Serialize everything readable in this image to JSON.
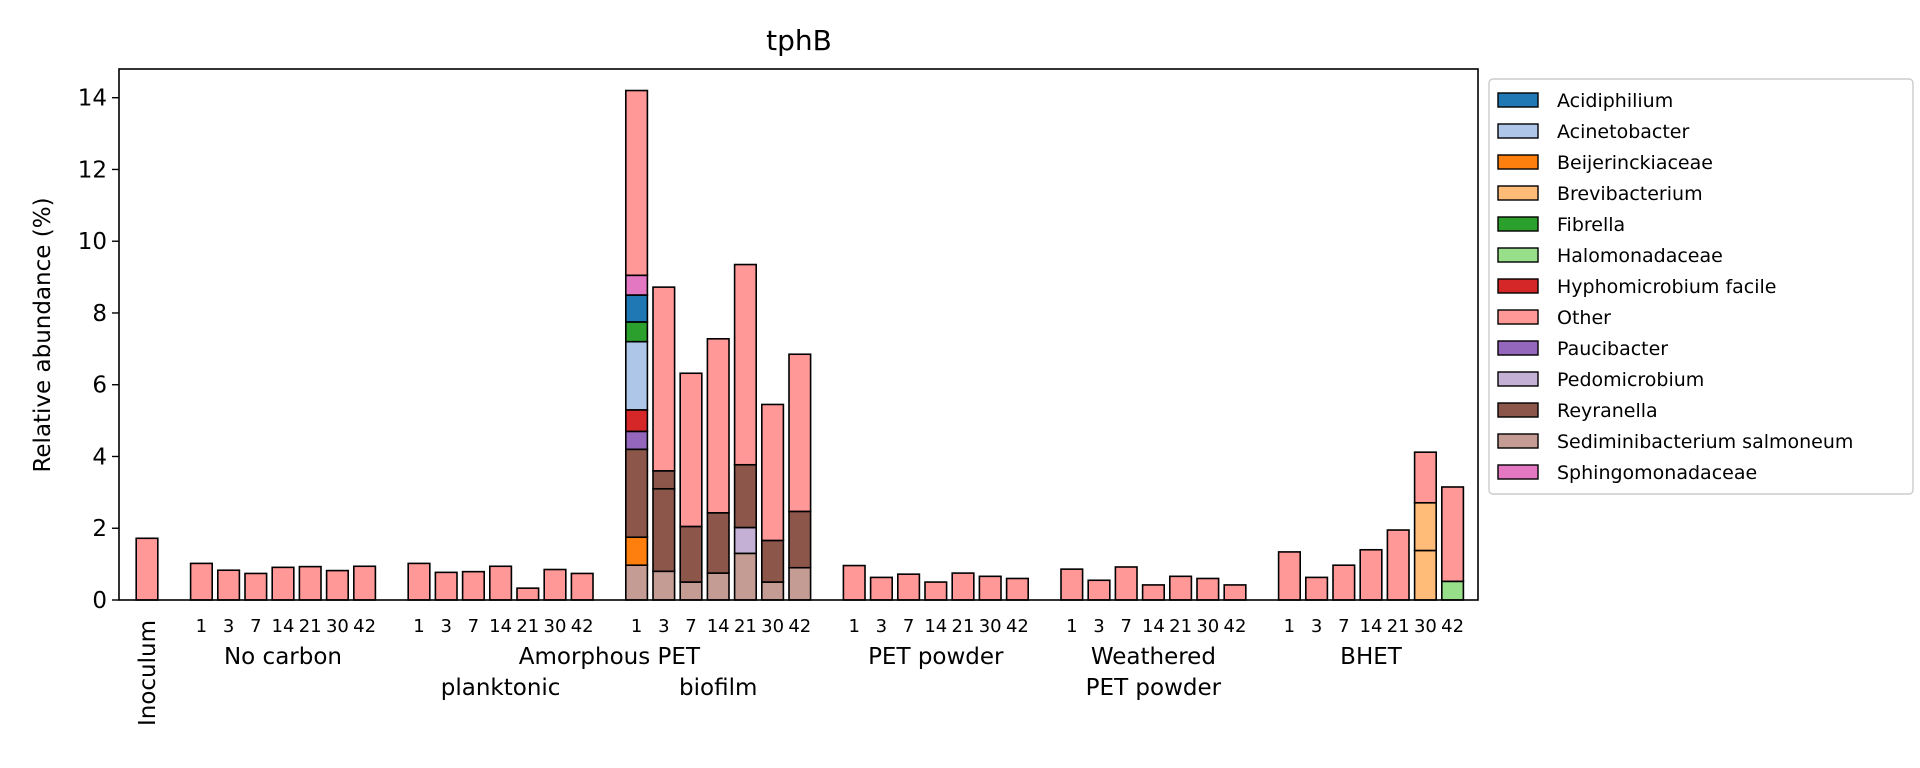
{
  "chart_data": {
    "type": "bar",
    "title": "tphB",
    "xlabel": "",
    "ylabel": "Relative abundance (%)",
    "ylim": [
      0,
      14.8
    ],
    "yticks": [
      0,
      2,
      4,
      6,
      8,
      10,
      12,
      14
    ],
    "grid": false,
    "legend_position": "outside-right",
    "inoculum_label": "Inoculum",
    "groups": [
      {
        "label_lines": [
          "No carbon"
        ],
        "days": [
          "1",
          "3",
          "7",
          "14",
          "21",
          "30",
          "42"
        ]
      },
      {
        "label_lines": [
          "planktonic"
        ],
        "days": [
          "1",
          "3",
          "7",
          "14",
          "21",
          "30",
          "42"
        ]
      },
      {
        "label_lines": [
          "biofilm"
        ],
        "days": [
          "1",
          "3",
          "7",
          "14",
          "21",
          "30",
          "42"
        ]
      },
      {
        "label_lines": [
          "PET powder"
        ],
        "days": [
          "1",
          "3",
          "7",
          "14",
          "21",
          "30",
          "42"
        ]
      },
      {
        "label_lines": [
          "Weathered",
          "PET powder"
        ],
        "days": [
          "1",
          "3",
          "7",
          "14",
          "21",
          "30",
          "42"
        ]
      },
      {
        "label_lines": [
          "BHET"
        ],
        "days": [
          "1",
          "3",
          "7",
          "14",
          "21",
          "30",
          "42"
        ]
      }
    ],
    "supergroup_label": "Amorphous PET",
    "series": [
      {
        "name": "Acidiphilium",
        "color": "#1f77b4"
      },
      {
        "name": "Acinetobacter",
        "color": "#aec7e8"
      },
      {
        "name": "Beijerinckiaceae",
        "color": "#ff7f0e"
      },
      {
        "name": "Brevibacterium",
        "color": "#ffbb78"
      },
      {
        "name": "Fibrella",
        "color": "#2ca02c"
      },
      {
        "name": "Halomonadaceae",
        "color": "#98df8a"
      },
      {
        "name": "Hyphomicrobium facile",
        "color": "#d62728"
      },
      {
        "name": "Other",
        "color": "#ff9896"
      },
      {
        "name": "Paucibacter",
        "color": "#9467bd"
      },
      {
        "name": "Pedomicrobium",
        "color": "#c5b0d5"
      },
      {
        "name": "Reyranella",
        "color": "#8c564b"
      },
      {
        "name": "Sediminibacterium salmoneum",
        "color": "#c49c94"
      },
      {
        "name": "Sphingomonadaceae",
        "color": "#e377c2"
      }
    ],
    "bars": [
      {
        "group": "Inoculum",
        "day": "",
        "segments": [
          {
            "s": "Other",
            "v": 1.72
          }
        ]
      },
      {
        "group": "No carbon",
        "day": "1",
        "segments": [
          {
            "s": "Other",
            "v": 1.02
          }
        ]
      },
      {
        "group": "No carbon",
        "day": "3",
        "segments": [
          {
            "s": "Other",
            "v": 0.83
          }
        ]
      },
      {
        "group": "No carbon",
        "day": "7",
        "segments": [
          {
            "s": "Other",
            "v": 0.74
          }
        ]
      },
      {
        "group": "No carbon",
        "day": "14",
        "segments": [
          {
            "s": "Other",
            "v": 0.91
          }
        ]
      },
      {
        "group": "No carbon",
        "day": "21",
        "segments": [
          {
            "s": "Other",
            "v": 0.93
          }
        ]
      },
      {
        "group": "No carbon",
        "day": "30",
        "segments": [
          {
            "s": "Other",
            "v": 0.82
          }
        ]
      },
      {
        "group": "No carbon",
        "day": "42",
        "segments": [
          {
            "s": "Other",
            "v": 0.94
          }
        ]
      },
      {
        "group": "planktonic",
        "day": "1",
        "segments": [
          {
            "s": "Other",
            "v": 1.02
          }
        ]
      },
      {
        "group": "planktonic",
        "day": "3",
        "segments": [
          {
            "s": "Other",
            "v": 0.77
          }
        ]
      },
      {
        "group": "planktonic",
        "day": "7",
        "segments": [
          {
            "s": "Other",
            "v": 0.79
          }
        ]
      },
      {
        "group": "planktonic",
        "day": "14",
        "segments": [
          {
            "s": "Other",
            "v": 0.94
          }
        ]
      },
      {
        "group": "planktonic",
        "day": "21",
        "segments": [
          {
            "s": "Other",
            "v": 0.33
          }
        ]
      },
      {
        "group": "planktonic",
        "day": "30",
        "segments": [
          {
            "s": "Other",
            "v": 0.85
          }
        ]
      },
      {
        "group": "planktonic",
        "day": "42",
        "segments": [
          {
            "s": "Other",
            "v": 0.74
          }
        ]
      },
      {
        "group": "biofilm",
        "day": "1",
        "segments": [
          {
            "s": "Sediminibacterium salmoneum",
            "v": 0.97
          },
          {
            "s": "Beijerinckiaceae",
            "v": 0.78
          },
          {
            "s": "Reyranella",
            "v": 2.45
          },
          {
            "s": "Paucibacter",
            "v": 0.5
          },
          {
            "s": "Hyphomicrobium facile",
            "v": 0.6
          },
          {
            "s": "Acinetobacter",
            "v": 1.9
          },
          {
            "s": "Fibrella",
            "v": 0.55
          },
          {
            "s": "Acidiphilium",
            "v": 0.75
          },
          {
            "s": "Sphingomonadaceae",
            "v": 0.55
          },
          {
            "s": "Other",
            "v": 5.15
          }
        ]
      },
      {
        "group": "biofilm",
        "day": "3",
        "segments": [
          {
            "s": "Sediminibacterium salmoneum",
            "v": 0.8
          },
          {
            "s": "Reyranella",
            "v": 2.3
          },
          {
            "s": "Reyranella",
            "v": 0.5
          },
          {
            "s": "Other",
            "v": 5.12
          }
        ]
      },
      {
        "group": "biofilm",
        "day": "7",
        "segments": [
          {
            "s": "Sediminibacterium salmoneum",
            "v": 0.5
          },
          {
            "s": "Reyranella",
            "v": 1.55
          },
          {
            "s": "Other",
            "v": 4.27
          }
        ]
      },
      {
        "group": "biofilm",
        "day": "14",
        "segments": [
          {
            "s": "Sediminibacterium salmoneum",
            "v": 0.75
          },
          {
            "s": "Reyranella",
            "v": 1.68
          },
          {
            "s": "Other",
            "v": 4.85
          }
        ]
      },
      {
        "group": "biofilm",
        "day": "21",
        "segments": [
          {
            "s": "Sediminibacterium salmoneum",
            "v": 1.3
          },
          {
            "s": "Pedomicrobium",
            "v": 0.72
          },
          {
            "s": "Reyranella",
            "v": 1.75
          },
          {
            "s": "Other",
            "v": 5.58
          }
        ]
      },
      {
        "group": "biofilm",
        "day": "30",
        "segments": [
          {
            "s": "Sediminibacterium salmoneum",
            "v": 0.5
          },
          {
            "s": "Reyranella",
            "v": 1.16
          },
          {
            "s": "Other",
            "v": 3.79
          }
        ]
      },
      {
        "group": "biofilm",
        "day": "42",
        "segments": [
          {
            "s": "Sediminibacterium salmoneum",
            "v": 0.9
          },
          {
            "s": "Reyranella",
            "v": 1.57
          },
          {
            "s": "Other",
            "v": 4.38
          }
        ]
      },
      {
        "group": "PET powder",
        "day": "1",
        "segments": [
          {
            "s": "Other",
            "v": 0.96
          }
        ]
      },
      {
        "group": "PET powder",
        "day": "3",
        "segments": [
          {
            "s": "Other",
            "v": 0.63
          }
        ]
      },
      {
        "group": "PET powder",
        "day": "7",
        "segments": [
          {
            "s": "Other",
            "v": 0.72
          }
        ]
      },
      {
        "group": "PET powder",
        "day": "14",
        "segments": [
          {
            "s": "Other",
            "v": 0.5
          }
        ]
      },
      {
        "group": "PET powder",
        "day": "21",
        "segments": [
          {
            "s": "Other",
            "v": 0.75
          }
        ]
      },
      {
        "group": "PET powder",
        "day": "30",
        "segments": [
          {
            "s": "Other",
            "v": 0.66
          }
        ]
      },
      {
        "group": "PET powder",
        "day": "42",
        "segments": [
          {
            "s": "Other",
            "v": 0.6
          }
        ]
      },
      {
        "group": "Weathered PET powder",
        "day": "1",
        "segments": [
          {
            "s": "Other",
            "v": 0.86
          }
        ]
      },
      {
        "group": "Weathered PET powder",
        "day": "3",
        "segments": [
          {
            "s": "Other",
            "v": 0.55
          }
        ]
      },
      {
        "group": "Weathered PET powder",
        "day": "7",
        "segments": [
          {
            "s": "Other",
            "v": 0.92
          }
        ]
      },
      {
        "group": "Weathered PET powder",
        "day": "14",
        "segments": [
          {
            "s": "Other",
            "v": 0.42
          }
        ]
      },
      {
        "group": "Weathered PET powder",
        "day": "21",
        "segments": [
          {
            "s": "Other",
            "v": 0.66
          }
        ]
      },
      {
        "group": "Weathered PET powder",
        "day": "30",
        "segments": [
          {
            "s": "Other",
            "v": 0.6
          }
        ]
      },
      {
        "group": "Weathered PET powder",
        "day": "42",
        "segments": [
          {
            "s": "Other",
            "v": 0.42
          }
        ]
      },
      {
        "group": "BHET",
        "day": "1",
        "segments": [
          {
            "s": "Other",
            "v": 1.34
          }
        ]
      },
      {
        "group": "BHET",
        "day": "3",
        "segments": [
          {
            "s": "Other",
            "v": 0.63
          }
        ]
      },
      {
        "group": "BHET",
        "day": "7",
        "segments": [
          {
            "s": "Other",
            "v": 0.97
          }
        ]
      },
      {
        "group": "BHET",
        "day": "14",
        "segments": [
          {
            "s": "Other",
            "v": 1.4
          }
        ]
      },
      {
        "group": "BHET",
        "day": "21",
        "segments": [
          {
            "s": "Other",
            "v": 1.95
          }
        ]
      },
      {
        "group": "BHET",
        "day": "30",
        "segments": [
          {
            "s": "Brevibacterium",
            "v": 1.38
          },
          {
            "s": "Brevibacterium",
            "v": 1.33
          },
          {
            "s": "Other",
            "v": 1.41
          }
        ]
      },
      {
        "group": "BHET",
        "day": "42",
        "segments": [
          {
            "s": "Halomonadaceae",
            "v": 0.52
          },
          {
            "s": "Other",
            "v": 2.63
          }
        ]
      }
    ]
  }
}
